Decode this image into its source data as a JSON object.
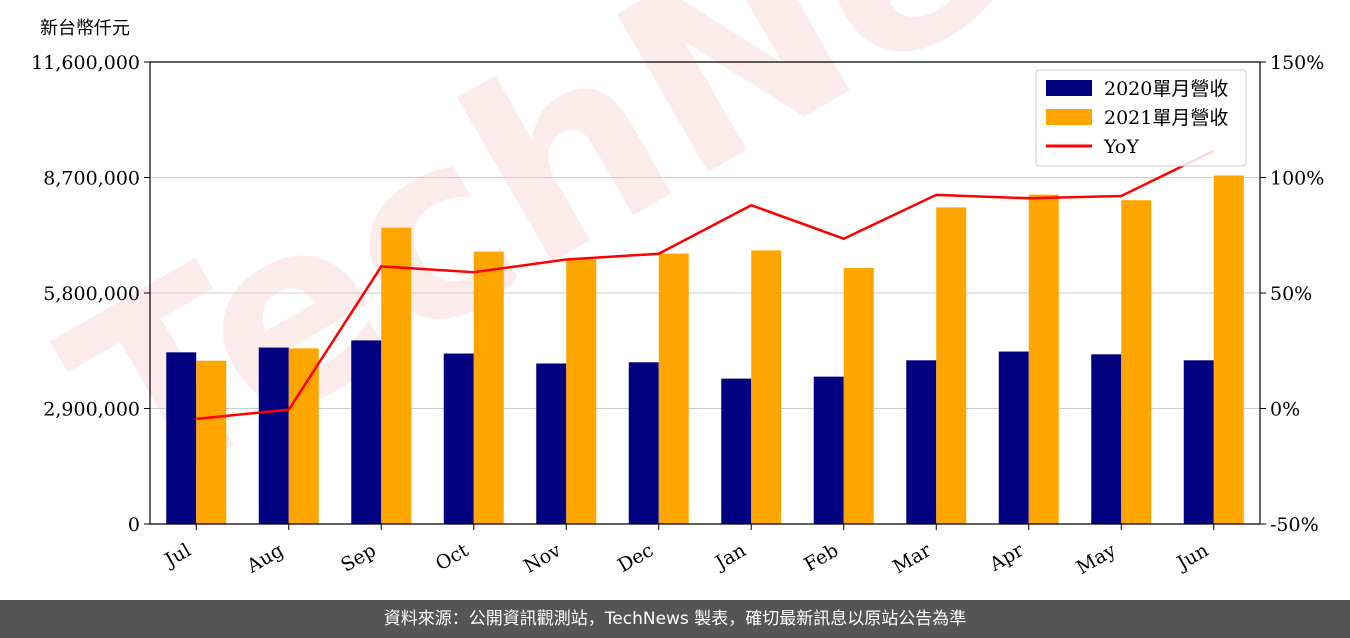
{
  "y_unit_label": "新台幣仟元",
  "footer_text": "資料來源：公開資訊觀測站，TechNews 製表，確切最新訊息以原站公告為準",
  "watermark": "TechNews",
  "colors": {
    "bar_2020": "#000080",
    "bar_2021": "#FFA500",
    "yoy_line": "#FF0000",
    "grid": "#cccccc",
    "footer_bg": "#555555"
  },
  "chart_data": {
    "type": "bar",
    "categories": [
      "Jul",
      "Aug",
      "Sep",
      "Oct",
      "Nov",
      "Dec",
      "Jan",
      "Feb",
      "Mar",
      "Apr",
      "May",
      "Jun"
    ],
    "series": [
      {
        "name": "2020單月營收",
        "type": "bar",
        "axis": "left",
        "values": [
          4310000,
          4430000,
          4610000,
          4280000,
          4030000,
          4060000,
          3650000,
          3700000,
          4110000,
          4330000,
          4260000,
          4110000
        ]
      },
      {
        "name": "2021單月營收",
        "type": "bar",
        "axis": "left",
        "values": [
          4100000,
          4410000,
          7440000,
          6840000,
          6640000,
          6790000,
          6870000,
          6430000,
          7950000,
          8270000,
          8130000,
          8750000
        ]
      },
      {
        "name": "YoY",
        "type": "line",
        "axis": "right",
        "values": [
          -4.5,
          -0.5,
          61.5,
          59.0,
          64.5,
          67.0,
          88.0,
          73.5,
          92.5,
          91.0,
          92.0,
          111.5
        ]
      }
    ],
    "y_left": {
      "ticks": [
        "0",
        "2,900,000",
        "5,800,000",
        "8,700,000",
        "11,600,000"
      ],
      "range": [
        0,
        11600000
      ]
    },
    "y_right": {
      "ticks": [
        "-50%",
        "0%",
        "50%",
        "100%",
        "150%"
      ],
      "range": [
        -50,
        150
      ]
    },
    "grid": "horizontal",
    "legend": "top-right"
  }
}
